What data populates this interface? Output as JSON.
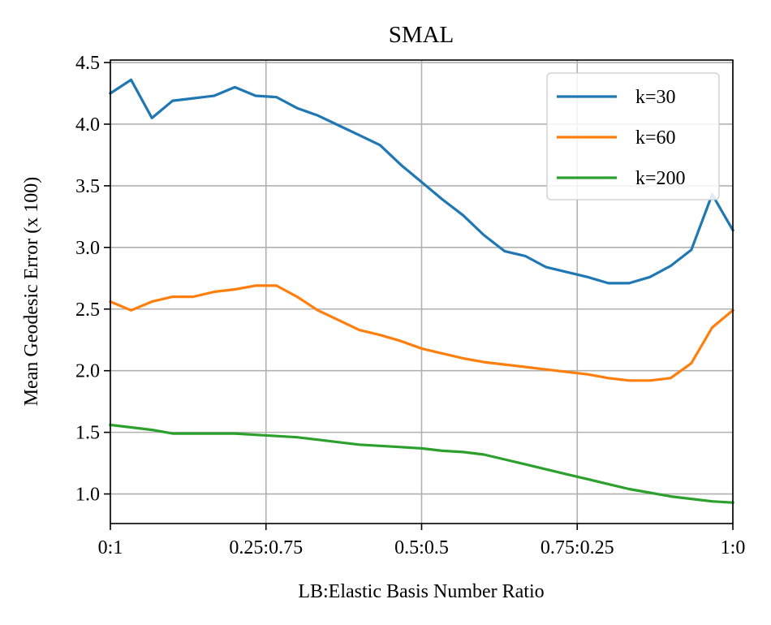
{
  "chart_data": {
    "type": "line",
    "title": "SMAL",
    "xlabel": "LB:Elastic Basis Number Ratio",
    "ylabel": "Mean Geodesic Error (x 100)",
    "xlim": [
      0,
      1
    ],
    "ylim": [
      0.76,
      4.52
    ],
    "grid": true,
    "legend_position": "top-right",
    "x_ticks": [
      {
        "value": 0.0,
        "label": "0:1"
      },
      {
        "value": 0.25,
        "label": "0.25:0.75"
      },
      {
        "value": 0.5,
        "label": "0.5:0.5"
      },
      {
        "value": 0.75,
        "label": "0.75:0.25"
      },
      {
        "value": 1.0,
        "label": "1:0"
      }
    ],
    "y_ticks": [
      {
        "value": 1.0,
        "label": "1.0"
      },
      {
        "value": 1.5,
        "label": "1.5"
      },
      {
        "value": 2.0,
        "label": "2.0"
      },
      {
        "value": 2.5,
        "label": "2.5"
      },
      {
        "value": 3.0,
        "label": "3.0"
      },
      {
        "value": 3.5,
        "label": "3.5"
      },
      {
        "value": 4.0,
        "label": "4.0"
      },
      {
        "value": 4.5,
        "label": "4.5"
      }
    ],
    "x": [
      0,
      0.0333,
      0.0667,
      0.1,
      0.1333,
      0.1667,
      0.2,
      0.2333,
      0.2667,
      0.3,
      0.3333,
      0.3667,
      0.4,
      0.4333,
      0.4667,
      0.5,
      0.5333,
      0.5667,
      0.6,
      0.6333,
      0.6667,
      0.7,
      0.7333,
      0.7667,
      0.8,
      0.8333,
      0.8667,
      0.9,
      0.9333,
      0.9667,
      1.0
    ],
    "series": [
      {
        "name": "k=30",
        "color": "#1f77b4",
        "values": [
          4.25,
          4.36,
          4.05,
          4.19,
          4.21,
          4.23,
          4.3,
          4.23,
          4.22,
          4.13,
          4.07,
          3.99,
          3.91,
          3.83,
          3.67,
          3.53,
          3.39,
          3.26,
          3.1,
          2.97,
          2.93,
          2.84,
          2.8,
          2.76,
          2.71,
          2.71,
          2.76,
          2.85,
          2.98,
          3.43,
          3.14
        ]
      },
      {
        "name": "k=60",
        "color": "#ff7f0e",
        "values": [
          2.56,
          2.49,
          2.56,
          2.6,
          2.6,
          2.64,
          2.66,
          2.69,
          2.69,
          2.6,
          2.49,
          2.41,
          2.33,
          2.29,
          2.24,
          2.18,
          2.14,
          2.1,
          2.07,
          2.05,
          2.03,
          2.01,
          1.99,
          1.97,
          1.94,
          1.92,
          1.92,
          1.94,
          2.06,
          2.35,
          2.49
        ]
      },
      {
        "name": "k=200",
        "color": "#2ca02c",
        "values": [
          1.56,
          1.54,
          1.52,
          1.49,
          1.49,
          1.49,
          1.49,
          1.48,
          1.47,
          1.46,
          1.44,
          1.42,
          1.4,
          1.39,
          1.38,
          1.37,
          1.35,
          1.34,
          1.32,
          1.28,
          1.24,
          1.2,
          1.16,
          1.12,
          1.08,
          1.04,
          1.01,
          0.98,
          0.96,
          0.94,
          0.93
        ]
      }
    ]
  }
}
